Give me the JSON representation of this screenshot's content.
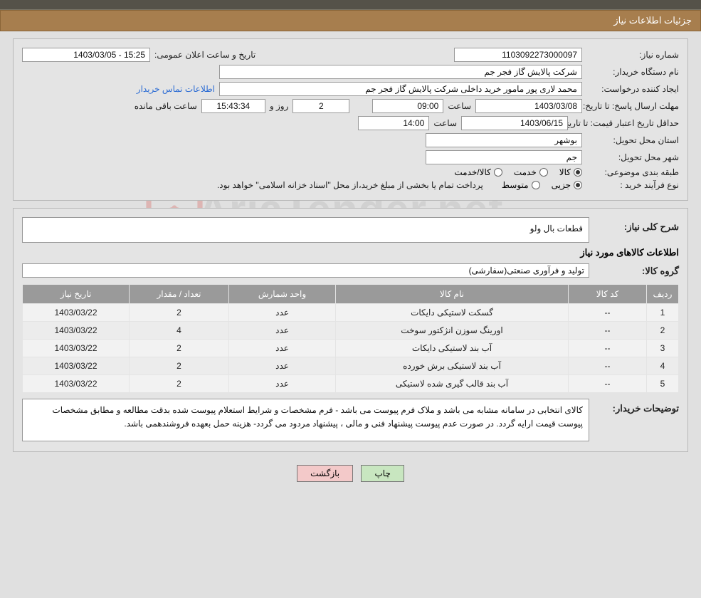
{
  "header": {
    "title": "جزئیات اطلاعات نیاز"
  },
  "info": {
    "need_no_label": "شماره نیاز:",
    "need_no": "1103092273000097",
    "announce_label": "تاریخ و ساعت اعلان عمومی:",
    "announce": "15:25 - 1403/03/05",
    "buyer_device_label": "نام دستگاه خریدار:",
    "buyer_device": "شرکت پالایش گاز فجر جم",
    "requester_label": "ایجاد کننده درخواست:",
    "requester": "محمد  لاری پور مامور خرید داخلی شرکت پالایش گاز فجر جم",
    "contact_link": "اطلاعات تماس خریدار",
    "deadline_label": "مهلت ارسال پاسخ: تا تاریخ:",
    "deadline_date": "1403/03/08",
    "time_label": "ساعت",
    "deadline_time": "09:00",
    "days_value": "2",
    "days_suffix": "روز و",
    "timer": "15:43:34",
    "remaining_suffix": "ساعت باقی مانده",
    "min_valid_label": "حداقل تاریخ اعتبار قیمت: تا تاریخ:",
    "min_valid_date": "1403/06/15",
    "min_valid_time": "14:00",
    "province_label": "استان محل تحویل:",
    "province": "بوشهر",
    "city_label": "شهر محل تحویل:",
    "city": "جم",
    "category_label": "طبقه بندی موضوعی:",
    "cat_kala": "کالا",
    "cat_khadamat": "خدمت",
    "cat_kalakhedmat": "کالا/خدمت",
    "process_label": "نوع فرآیند خرید :",
    "proc_partial": "جزیی",
    "proc_medium": "متوسط",
    "process_note": "پرداخت تمام یا بخشی از مبلغ خرید،از محل \"اسناد خزانه اسلامی\" خواهد بود."
  },
  "need": {
    "desc_label": "شرح کلی نیاز:",
    "desc": "قطعات بال ولو",
    "items_title": "اطلاعات کالاهای مورد نیاز",
    "group_label": "گروه کالا:",
    "group": "تولید و فرآوری صنعتی(سفارشی)"
  },
  "table": {
    "headers": {
      "idx": "ردیف",
      "code": "کد کالا",
      "name": "نام کالا",
      "unit": "واحد شمارش",
      "qty": "تعداد / مقدار",
      "date": "تاریخ نیاز"
    },
    "rows": [
      {
        "idx": "1",
        "code": "--",
        "name": "گسکت لاستیکی دایکات",
        "unit": "عدد",
        "qty": "2",
        "date": "1403/03/22"
      },
      {
        "idx": "2",
        "code": "--",
        "name": "اورینگ سوزن انژکتور سوخت",
        "unit": "عدد",
        "qty": "4",
        "date": "1403/03/22"
      },
      {
        "idx": "3",
        "code": "--",
        "name": "آب بند لاستیکی دایکات",
        "unit": "عدد",
        "qty": "2",
        "date": "1403/03/22"
      },
      {
        "idx": "4",
        "code": "--",
        "name": "آب بند لاستیکی برش خورده",
        "unit": "عدد",
        "qty": "2",
        "date": "1403/03/22"
      },
      {
        "idx": "5",
        "code": "--",
        "name": "آب بند قالب گیری شده لاستیکی",
        "unit": "عدد",
        "qty": "2",
        "date": "1403/03/22"
      }
    ]
  },
  "buyer_note": {
    "label": "توضیحات خریدار:",
    "text": "کالای انتخابی در سامانه مشابه می باشد و ملاک فرم پیوست می باشد  -  فرم مشخصات و شرایط استعلام  پیوست شده بدقت مطالعه و مطابق مشخصات پیوست قیمت ارایه گردد. در صورت عدم پیوست پیشنهاد فنی و مالی ، پیشنهاد مردود می گردد- هزینه حمل بعهده فروشندهمی باشد."
  },
  "buttons": {
    "print": "چاپ",
    "back": "بازگشت"
  },
  "watermark": "AriaTender.net",
  "colors": {
    "header_bg": "#a77e4e",
    "strip_bg": "#555249",
    "panel_border": "#b8b8b8",
    "th_bg": "#9a9a9a",
    "btn_print": "#c8e6c0",
    "btn_back": "#f3c9c9",
    "link": "#2a6bd4"
  }
}
